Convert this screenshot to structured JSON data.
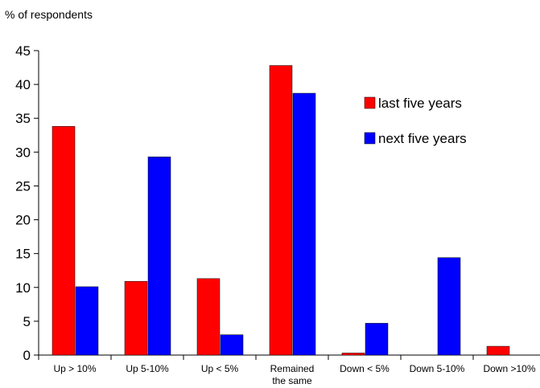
{
  "chart_data": {
    "type": "bar",
    "title": "",
    "xlabel": "",
    "ylabel": "% of respondents",
    "ylim": [
      0,
      45
    ],
    "yticks": [
      0,
      5,
      10,
      15,
      20,
      25,
      30,
      35,
      40,
      45
    ],
    "grid": false,
    "legend_position": "right",
    "categories": [
      [
        "Up > 10%"
      ],
      [
        "Up 5-10%"
      ],
      [
        "Up < 5%"
      ],
      [
        "Remained",
        "the same"
      ],
      [
        "Down < 5%"
      ],
      [
        "Down 5-10%"
      ],
      [
        "Down >10%"
      ]
    ],
    "series": [
      {
        "name": "last five years",
        "color": "#ff0000",
        "values": [
          33.8,
          10.9,
          11.3,
          42.8,
          0.3,
          0,
          1.3
        ]
      },
      {
        "name": "next five years",
        "color": "#0000ff",
        "values": [
          10.1,
          29.3,
          3.0,
          38.7,
          4.7,
          14.4,
          0
        ]
      }
    ]
  }
}
